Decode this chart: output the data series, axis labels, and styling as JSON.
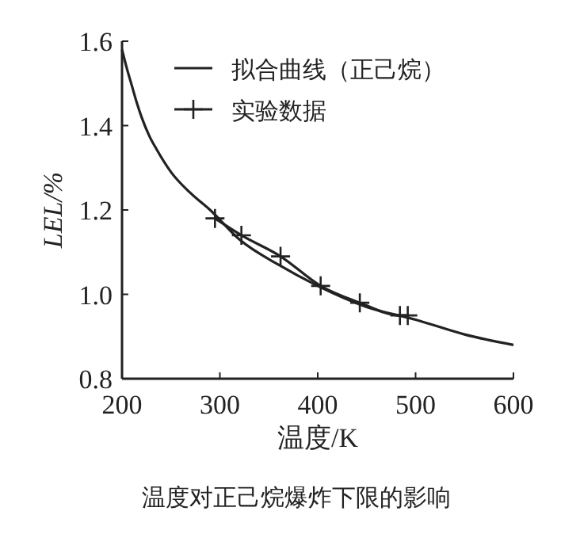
{
  "chart_data": {
    "type": "line",
    "xlabel": "温度/K",
    "ylabel": "LEL/%",
    "xlim": [
      200,
      600
    ],
    "ylim": [
      0.8,
      1.6
    ],
    "xticks": [
      200,
      300,
      400,
      500,
      600
    ],
    "yticks": [
      0.8,
      {
        "value": 1,
        "label": "1.0"
      },
      1.2,
      1.4,
      1.6
    ],
    "legend": "top right",
    "grid": false,
    "series": [
      {
        "name": "拟合曲线（正己烷）",
        "color": "#222222",
        "marker": "none",
        "x": [
          200,
          205,
          210,
          215,
          220,
          228,
          235,
          250,
          270,
          290,
          320,
          360,
          400,
          450,
          500,
          550,
          600
        ],
        "values": [
          1.58,
          1.535,
          1.495,
          1.455,
          1.42,
          1.375,
          1.345,
          1.29,
          1.24,
          1.2,
          1.13,
          1.07,
          1.02,
          0.97,
          0.94,
          0.905,
          0.88
        ]
      },
      {
        "name": "实验数据",
        "color": "#222222",
        "marker": "cross",
        "x": [
          295,
          322,
          362,
          403,
          443,
          484,
          492
        ],
        "values": [
          1.18,
          1.14,
          1.09,
          1.02,
          0.98,
          0.95,
          0.95
        ]
      }
    ],
    "annotations": [
      "温度对正己烷爆炸下限的影响"
    ]
  }
}
